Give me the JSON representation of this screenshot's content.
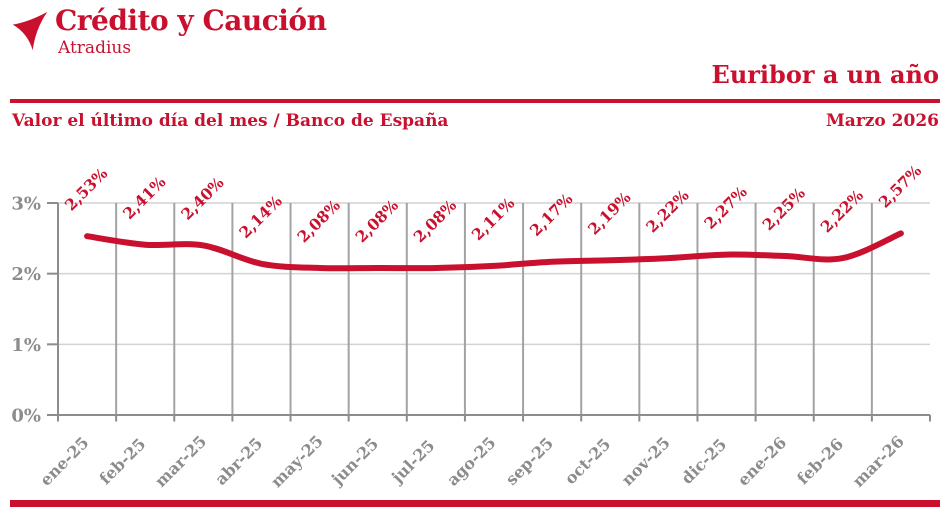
{
  "brand": {
    "name": "Crédito y Caución",
    "subname": "Atradius",
    "logo_icon": "tri-arrow-icon"
  },
  "header": {
    "title": "Euribor a un año",
    "date": "Marzo 2026",
    "subtitle": "Valor el último día del mes / Banco de España"
  },
  "colors": {
    "brand_red": "#C9102E",
    "line_red": "#C9102E",
    "data_label_red": "#C9102E",
    "axis_gray": "#8C8C8C",
    "tick_text_gray": "#8C8C8C",
    "grid_vertical": "#A3A3A3",
    "grid_horizontal": "#D2D2D2"
  },
  "chart_data": {
    "type": "line",
    "title": "Euribor a un año",
    "subtitle": "Valor el último día del mes / Banco de España",
    "source": "Banco de España",
    "categories": [
      "ene-25",
      "feb-25",
      "mar-25",
      "abr-25",
      "may-25",
      "jun-25",
      "jul-25",
      "ago-25",
      "sep-25",
      "oct-25",
      "nov-25",
      "dic-25",
      "ene-26",
      "feb-26",
      "mar-26"
    ],
    "values": [
      2.53,
      2.41,
      2.4,
      2.14,
      2.08,
      2.08,
      2.08,
      2.11,
      2.17,
      2.19,
      2.22,
      2.27,
      2.25,
      2.22,
      2.57
    ],
    "labels_display": [
      "2,53%",
      "2,41%",
      "2,40%",
      "2,14%",
      "2,08%",
      "2,08%",
      "2,08%",
      "2,11%",
      "2,17%",
      "2,19%",
      "2,22%",
      "2,27%",
      "2,25%",
      "2,22%",
      "2,57%"
    ],
    "xlabel": "",
    "ylabel": "",
    "ylim": [
      0,
      3
    ],
    "yticks": {
      "values": [
        0,
        1,
        2,
        3
      ],
      "labels": [
        "0%",
        "1%",
        "2%",
        "3%"
      ]
    },
    "grid": true,
    "legend_position": "none",
    "smooth": true,
    "line_color": "#C9102E"
  }
}
